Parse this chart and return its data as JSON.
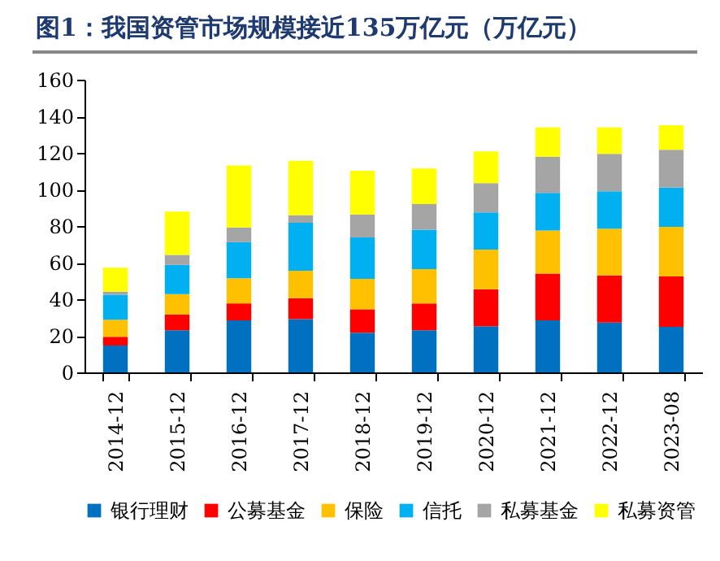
{
  "chart_data": {
    "type": "bar",
    "title": "图1：我国资管市场规模接近135万亿元（万亿元）",
    "stacked": true,
    "categories": [
      "2014-12",
      "2015-12",
      "2016-12",
      "2017-12",
      "2018-12",
      "2019-12",
      "2020-12",
      "2021-12",
      "2022-12",
      "2023-08"
    ],
    "series": [
      {
        "name": "银行理财",
        "color": "#0070c0",
        "values": [
          14.7,
          23,
          28.4,
          29.1,
          21.7,
          23,
          25.2,
          28.4,
          27.2,
          24.9
        ]
      },
      {
        "name": "公募基金",
        "color": "#ff0000",
        "values": [
          4.8,
          8.6,
          9.3,
          11.5,
          12.8,
          14.7,
          20.2,
          25.6,
          25.8,
          27.5
        ]
      },
      {
        "name": "保险",
        "color": "#ffc000",
        "values": [
          9.3,
          11.2,
          13.7,
          15,
          16.6,
          18.8,
          21.7,
          23.6,
          25.6,
          27.2
        ]
      },
      {
        "name": "信托",
        "color": "#00b0f0",
        "values": [
          13.7,
          16,
          19.8,
          26.2,
          22.7,
          21.5,
          20.4,
          20.5,
          20.4,
          21.4
        ]
      },
      {
        "name": "私募基金",
        "color": "#a5a5a5",
        "values": [
          1.6,
          5.4,
          8,
          4.1,
          12.5,
          14,
          16,
          19.8,
          20.5,
          20.7
        ]
      },
      {
        "name": "私募资管",
        "color": "#ffff00",
        "values": [
          13.1,
          23.7,
          33.9,
          29.8,
          23.9,
          19.5,
          17.3,
          16,
          14.4,
          13.4
        ]
      }
    ],
    "ylim": [
      0,
      160
    ],
    "yticks": [
      0,
      20,
      40,
      60,
      80,
      100,
      120,
      140,
      160
    ],
    "grid": false,
    "legend": "bottom"
  }
}
